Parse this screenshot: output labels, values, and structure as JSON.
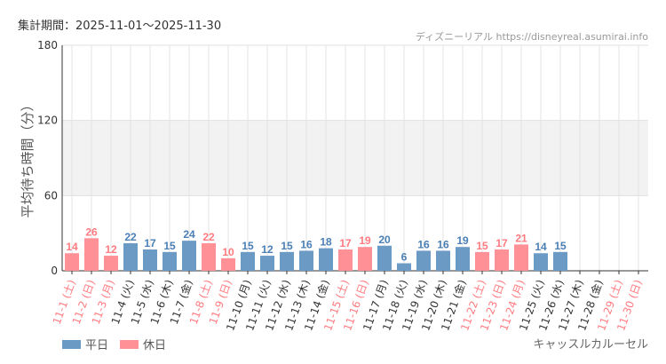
{
  "header": {
    "period": "集計期間：2025-11-01〜2025-11-30",
    "source": "ディズニーリアル https://disneyreal.asumirai.info"
  },
  "legend": {
    "weekday": "平日",
    "holiday": "休日"
  },
  "attraction": "キャッスルカルーセル",
  "colors": {
    "weekday": "#6b9ac4",
    "holiday": "#ff9095",
    "holiday_text": "#ff7b80",
    "weekday_text": "#4a7fb5"
  },
  "chart_data": {
    "type": "bar",
    "ylabel": "平均待ち時間（分）",
    "xlabel": "",
    "ylim": [
      0,
      180
    ],
    "yticks": [
      0,
      60,
      120,
      180
    ],
    "shaded_band": [
      60,
      120
    ],
    "grid": true,
    "legend_position": "bottom-left",
    "categories": [
      "11-1 (土)",
      "11-2 (日)",
      "11-3 (月)",
      "11-4 (火)",
      "11-5 (水)",
      "11-6 (木)",
      "11-7 (金)",
      "11-8 (土)",
      "11-9 (日)",
      "11-10 (月)",
      "11-11 (火)",
      "11-12 (水)",
      "11-13 (木)",
      "11-14 (金)",
      "11-15 (土)",
      "11-16 (日)",
      "11-17 (月)",
      "11-18 (火)",
      "11-19 (水)",
      "11-20 (木)",
      "11-21 (金)",
      "11-22 (土)",
      "11-23 (日)",
      "11-24 (月)",
      "11-25 (火)",
      "11-26 (水)",
      "11-27 (木)",
      "11-28 (金)",
      "11-29 (土)",
      "11-30 (日)"
    ],
    "holiday": [
      true,
      true,
      true,
      false,
      false,
      false,
      false,
      true,
      true,
      false,
      false,
      false,
      false,
      false,
      true,
      true,
      false,
      false,
      false,
      false,
      false,
      true,
      true,
      true,
      false,
      false,
      false,
      false,
      true,
      true
    ],
    "values": [
      14,
      26,
      12,
      22,
      17,
      15,
      24,
      22,
      10,
      15,
      12,
      15,
      16,
      18,
      17,
      19,
      20,
      6,
      16,
      16,
      19,
      15,
      17,
      21,
      14,
      15,
      null,
      null,
      null,
      null
    ]
  }
}
